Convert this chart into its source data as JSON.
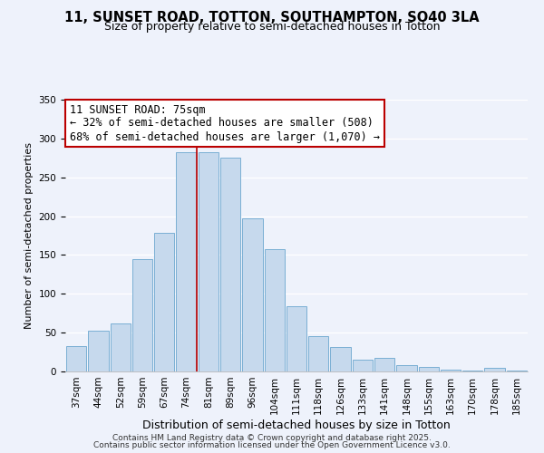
{
  "title": "11, SUNSET ROAD, TOTTON, SOUTHAMPTON, SO40 3LA",
  "subtitle": "Size of property relative to semi-detached houses in Totton",
  "xlabel": "Distribution of semi-detached houses by size in Totton",
  "ylabel": "Number of semi-detached properties",
  "categories": [
    "37sqm",
    "44sqm",
    "52sqm",
    "59sqm",
    "67sqm",
    "74sqm",
    "81sqm",
    "89sqm",
    "96sqm",
    "104sqm",
    "111sqm",
    "118sqm",
    "126sqm",
    "133sqm",
    "141sqm",
    "148sqm",
    "155sqm",
    "163sqm",
    "170sqm",
    "178sqm",
    "185sqm"
  ],
  "values": [
    33,
    53,
    62,
    145,
    178,
    282,
    282,
    275,
    197,
    158,
    84,
    46,
    31,
    15,
    18,
    8,
    6,
    2,
    1,
    5,
    1
  ],
  "bar_color": "#c6d9ed",
  "bar_edge_color": "#7aafd4",
  "highlight_index": 5,
  "highlight_line_color": "#bb0000",
  "annotation_title": "11 SUNSET ROAD: 75sqm",
  "annotation_line1": "← 32% of semi-detached houses are smaller (508)",
  "annotation_line2": "68% of semi-detached houses are larger (1,070) →",
  "annotation_box_color": "#ffffff",
  "annotation_box_edge_color": "#bb0000",
  "ylim": [
    0,
    350
  ],
  "yticks": [
    0,
    50,
    100,
    150,
    200,
    250,
    300,
    350
  ],
  "background_color": "#eef2fb",
  "grid_color": "#ffffff",
  "footer1": "Contains HM Land Registry data © Crown copyright and database right 2025.",
  "footer2": "Contains public sector information licensed under the Open Government Licence v3.0.",
  "title_fontsize": 10.5,
  "subtitle_fontsize": 9,
  "xlabel_fontsize": 9,
  "ylabel_fontsize": 8,
  "tick_fontsize": 7.5,
  "annotation_fontsize": 8.5,
  "footer_fontsize": 6.5
}
